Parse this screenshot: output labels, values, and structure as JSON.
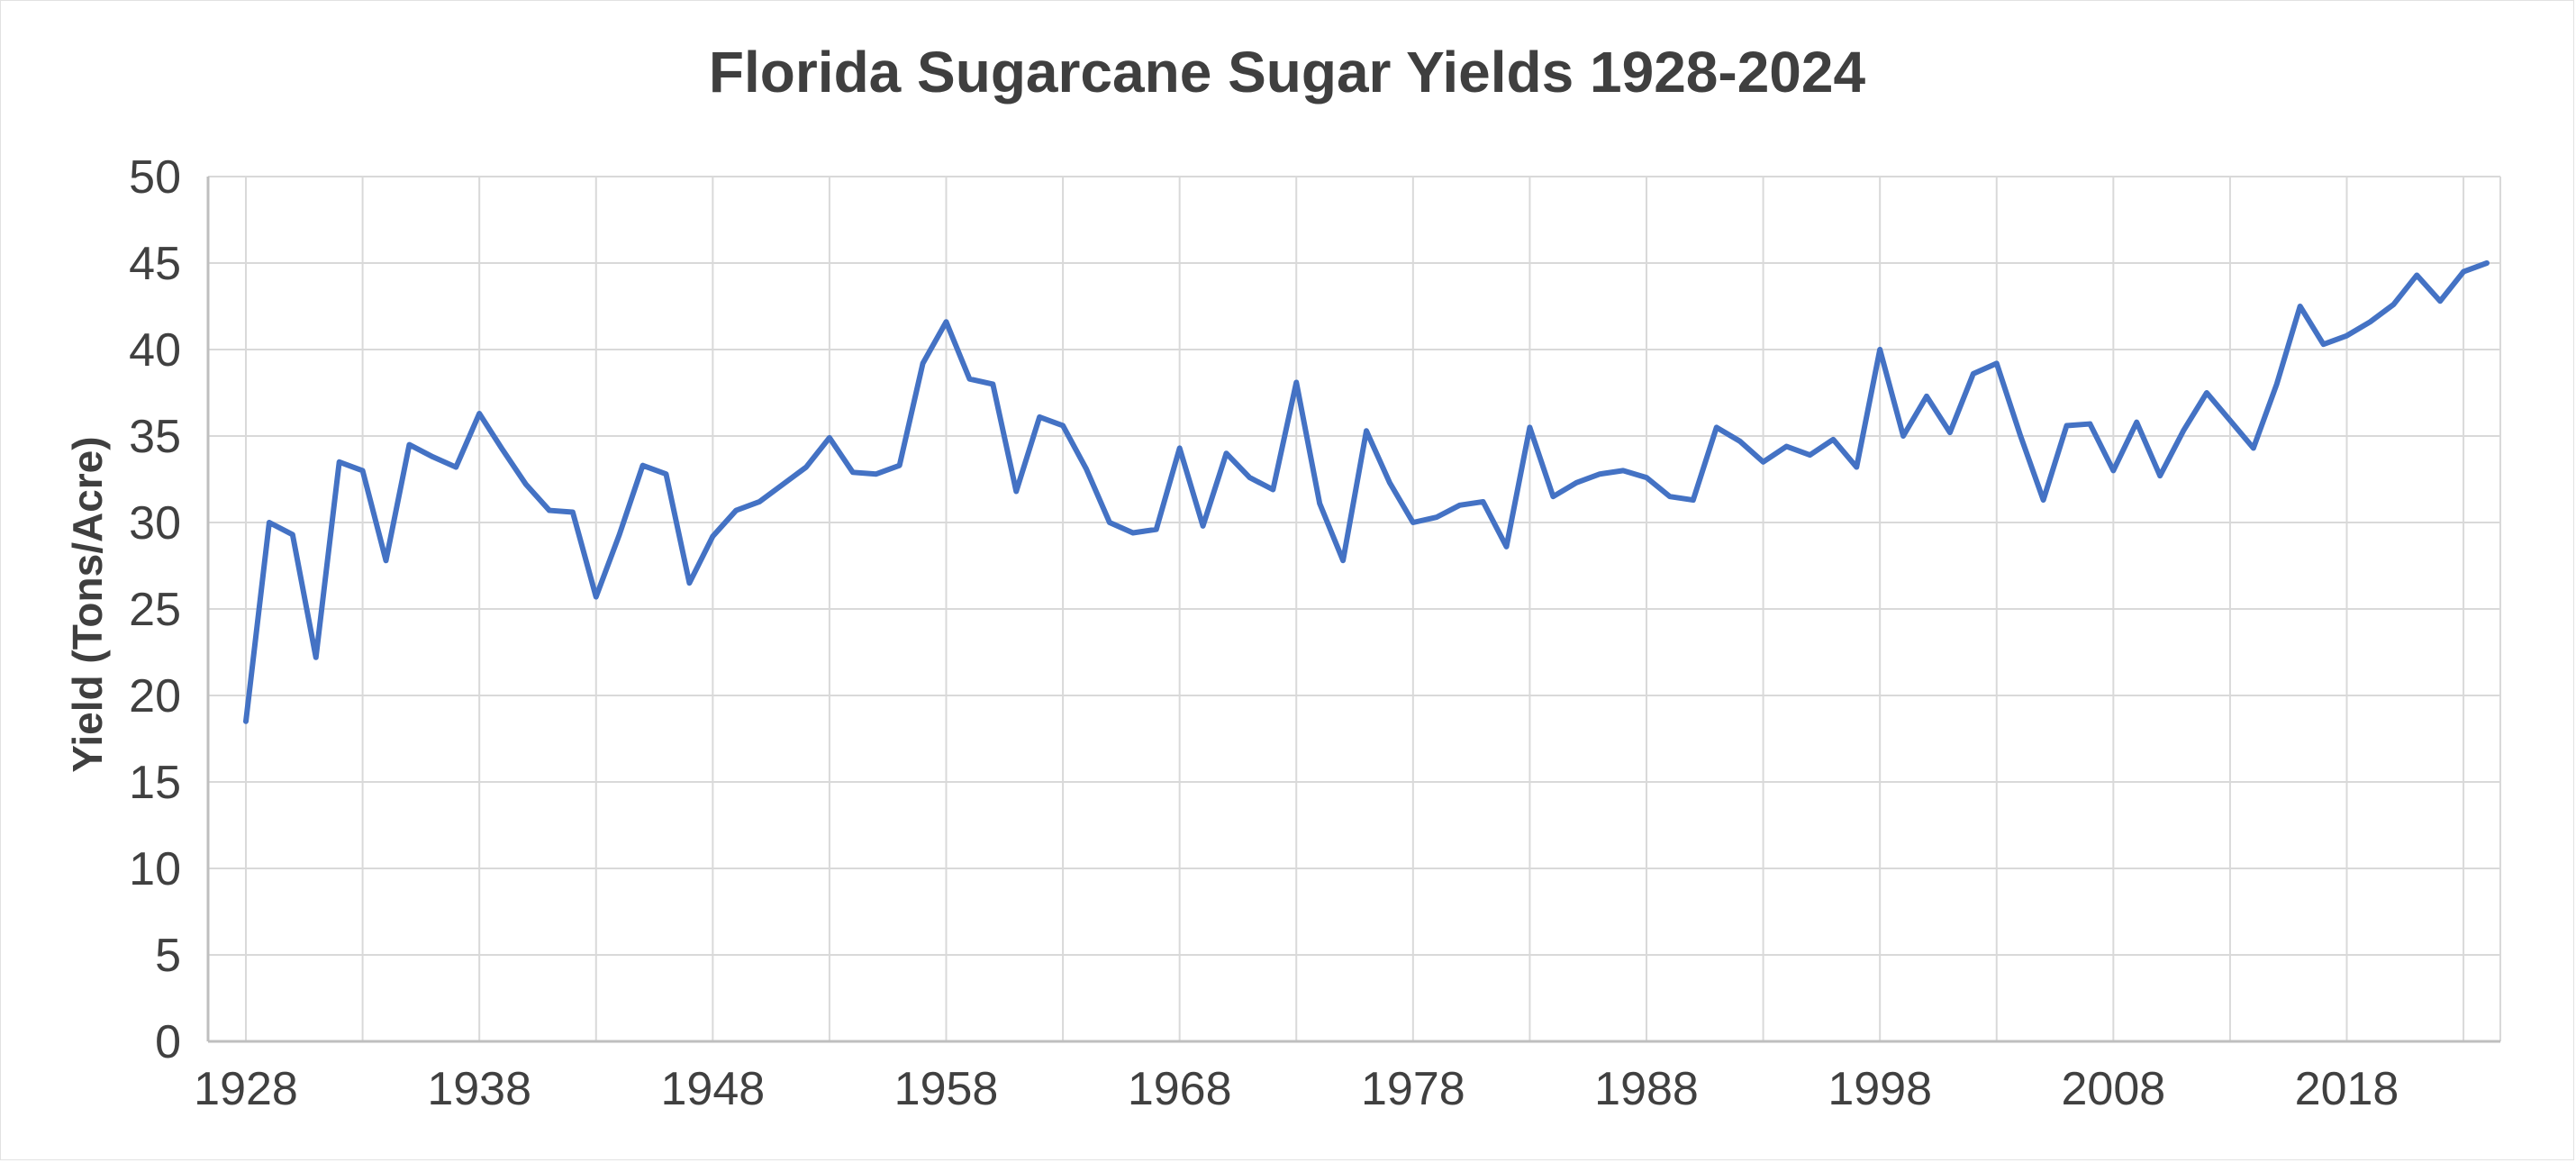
{
  "chart_data": {
    "type": "line",
    "title": "Florida Sugarcane Sugar Yields 1928-2024",
    "xlabel": "",
    "ylabel": "Yield (Tons/Acre)",
    "x_start": 1928,
    "x_end": 2024,
    "x_step": 1,
    "x_tick_labels": [
      "1928",
      "1938",
      "1948",
      "1958",
      "1968",
      "1978",
      "1988",
      "1998",
      "2008",
      "2018"
    ],
    "x_grid_interval_years": 5,
    "ylim": [
      0,
      50
    ],
    "y_tick_step": 5,
    "grid": true,
    "legend": "none",
    "colors": {
      "line": "#4472C4",
      "grid": "#D9D9D9",
      "axis": "#BFBFBF",
      "text": "#404040",
      "title": "#3F3F3F",
      "background": "#FFFFFF"
    },
    "series": [
      {
        "name": "Yield",
        "values": [
          18.5,
          30.0,
          29.3,
          22.2,
          33.5,
          33.0,
          27.8,
          34.5,
          33.8,
          33.2,
          36.3,
          34.2,
          32.2,
          30.7,
          30.6,
          25.7,
          29.3,
          33.3,
          32.8,
          26.5,
          29.2,
          30.7,
          31.2,
          32.2,
          33.2,
          34.9,
          32.9,
          32.8,
          33.3,
          39.2,
          41.6,
          38.3,
          38.0,
          31.8,
          36.1,
          35.6,
          33.1,
          30.0,
          29.4,
          29.6,
          34.3,
          29.8,
          34.0,
          32.6,
          31.9,
          38.1,
          31.1,
          27.8,
          35.3,
          32.3,
          30.0,
          30.3,
          31.0,
          31.2,
          28.6,
          35.5,
          31.5,
          32.3,
          32.8,
          33.0,
          32.6,
          31.5,
          31.3,
          35.5,
          34.7,
          33.5,
          34.4,
          33.9,
          34.8,
          33.2,
          40.0,
          35.0,
          37.3,
          35.2,
          38.6,
          39.2,
          35.1,
          31.3,
          35.6,
          35.7,
          33.0,
          35.8,
          32.7,
          35.3,
          37.5,
          35.9,
          34.3,
          38.0,
          42.5,
          40.3,
          40.8,
          41.6,
          42.6,
          44.3,
          42.8,
          44.5,
          45.0
        ]
      }
    ]
  }
}
